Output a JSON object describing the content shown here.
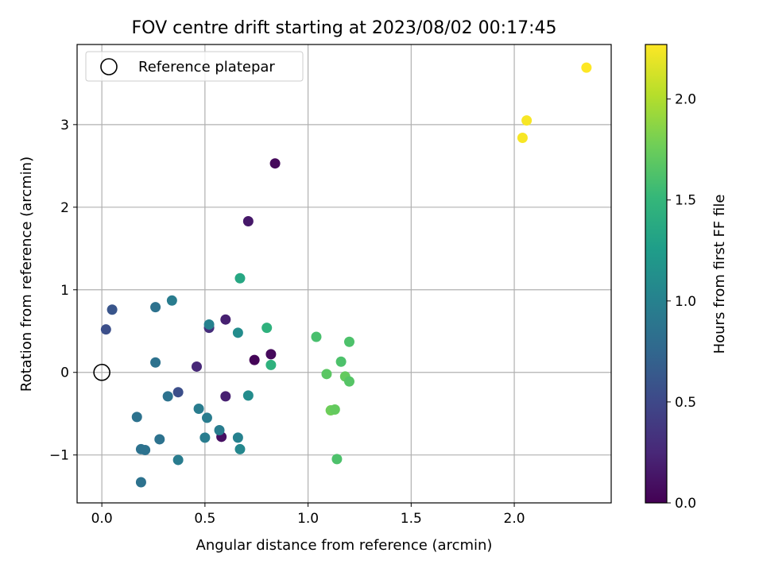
{
  "chart_data": {
    "type": "scatter",
    "title": "FOV centre drift starting at 2023/08/02 00:17:45",
    "xlabel": "Angular distance from reference (arcmin)",
    "ylabel": "Rotation from reference (arcmin)",
    "xlim": [
      -0.12,
      2.47
    ],
    "ylim": [
      -1.58,
      3.97
    ],
    "xticks": [
      0.0,
      0.5,
      1.0,
      1.5,
      2.0
    ],
    "xtick_labels": [
      "0.0",
      "0.5",
      "1.0",
      "1.5",
      "2.0"
    ],
    "yticks": [
      -1,
      0,
      1,
      2,
      3
    ],
    "ytick_labels": [
      "−1",
      "0",
      "1",
      "2",
      "3"
    ],
    "grid": true,
    "colormap": "viridis",
    "colormap_stops": [
      "#440154",
      "#482878",
      "#3e4989",
      "#31688e",
      "#26828e",
      "#1f9e89",
      "#35b779",
      "#6ece58",
      "#b5de2b",
      "#fde725"
    ],
    "colorbar": {
      "label": "Hours from first FF file",
      "range": [
        0.0,
        2.27
      ],
      "ticks": [
        0.0,
        0.5,
        1.0,
        1.5,
        2.0
      ],
      "tick_labels": [
        "0.0",
        "0.5",
        "1.0",
        "1.5",
        "2.0"
      ]
    },
    "legend": {
      "position": "top-left",
      "entries": [
        "Reference platepar"
      ]
    },
    "reference_point": {
      "x": 0.0,
      "y": 0.0,
      "label": "Reference platepar"
    },
    "points": [
      {
        "x": 0.84,
        "y": 2.53,
        "c": 0.05
      },
      {
        "x": 0.71,
        "y": 1.83,
        "c": 0.15
      },
      {
        "x": 0.74,
        "y": 0.15,
        "c": 0.02
      },
      {
        "x": 0.82,
        "y": 0.22,
        "c": 0.05
      },
      {
        "x": 0.6,
        "y": 0.64,
        "c": 0.2
      },
      {
        "x": 0.58,
        "y": -0.78,
        "c": 0.1
      },
      {
        "x": 0.46,
        "y": 0.07,
        "c": 0.25
      },
      {
        "x": 0.6,
        "y": -0.29,
        "c": 0.2
      },
      {
        "x": 0.52,
        "y": 0.54,
        "c": 0.3
      },
      {
        "x": 0.37,
        "y": -0.24,
        "c": 0.55
      },
      {
        "x": 0.02,
        "y": 0.52,
        "c": 0.55
      },
      {
        "x": 0.05,
        "y": 0.76,
        "c": 0.6
      },
      {
        "x": 0.26,
        "y": 0.79,
        "c": 0.85
      },
      {
        "x": 0.26,
        "y": 0.12,
        "c": 0.85
      },
      {
        "x": 0.34,
        "y": 0.87,
        "c": 0.95
      },
      {
        "x": 0.52,
        "y": 0.58,
        "c": 1.0
      },
      {
        "x": 0.66,
        "y": 0.48,
        "c": 1.1
      },
      {
        "x": 0.32,
        "y": -0.29,
        "c": 0.85
      },
      {
        "x": 0.17,
        "y": -0.54,
        "c": 0.85
      },
      {
        "x": 0.19,
        "y": -0.93,
        "c": 0.85
      },
      {
        "x": 0.21,
        "y": -0.94,
        "c": 0.85
      },
      {
        "x": 0.19,
        "y": -1.33,
        "c": 0.85
      },
      {
        "x": 0.28,
        "y": -0.81,
        "c": 0.85
      },
      {
        "x": 0.37,
        "y": -1.06,
        "c": 0.95
      },
      {
        "x": 0.47,
        "y": -0.44,
        "c": 0.95
      },
      {
        "x": 0.5,
        "y": -0.79,
        "c": 0.95
      },
      {
        "x": 0.51,
        "y": -0.55,
        "c": 0.95
      },
      {
        "x": 0.57,
        "y": -0.7,
        "c": 0.95
      },
      {
        "x": 0.66,
        "y": -0.79,
        "c": 1.0
      },
      {
        "x": 0.67,
        "y": -0.93,
        "c": 1.05
      },
      {
        "x": 0.71,
        "y": -0.28,
        "c": 1.1
      },
      {
        "x": 0.67,
        "y": 1.14,
        "c": 1.35
      },
      {
        "x": 0.8,
        "y": 0.54,
        "c": 1.45
      },
      {
        "x": 0.82,
        "y": 0.09,
        "c": 1.45
      },
      {
        "x": 1.04,
        "y": 0.43,
        "c": 1.6
      },
      {
        "x": 1.2,
        "y": 0.37,
        "c": 1.62
      },
      {
        "x": 1.09,
        "y": -0.02,
        "c": 1.68
      },
      {
        "x": 1.16,
        "y": 0.13,
        "c": 1.62
      },
      {
        "x": 1.18,
        "y": -0.05,
        "c": 1.72
      },
      {
        "x": 1.2,
        "y": -0.11,
        "c": 1.66
      },
      {
        "x": 1.11,
        "y": -0.46,
        "c": 1.76
      },
      {
        "x": 1.13,
        "y": -0.45,
        "c": 1.72
      },
      {
        "x": 1.14,
        "y": -1.05,
        "c": 1.62
      },
      {
        "x": 2.04,
        "y": 2.84,
        "c": 2.25
      },
      {
        "x": 2.06,
        "y": 3.05,
        "c": 2.25
      },
      {
        "x": 2.35,
        "y": 3.69,
        "c": 2.27
      }
    ]
  }
}
